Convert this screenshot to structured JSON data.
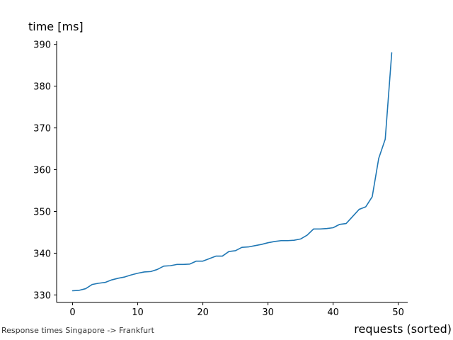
{
  "chart_data": {
    "type": "line",
    "xlabel": "requests (sorted)",
    "ylabel": "time [ms]",
    "xlim": [
      -2.45,
      51.45
    ],
    "ylim": [
      328.2,
      390.8
    ],
    "x_ticks": [
      0,
      10,
      20,
      30,
      40,
      50
    ],
    "y_ticks": [
      330,
      340,
      350,
      360,
      370,
      380,
      390
    ],
    "grid": false,
    "line_color": "#1f77b4",
    "series": [
      {
        "values": [
          331.0,
          331.1,
          331.5,
          332.5,
          332.8,
          333.0,
          333.6,
          334.0,
          334.3,
          334.8,
          335.2,
          335.5,
          335.6,
          336.1,
          336.9,
          337.0,
          337.3,
          337.3,
          337.4,
          338.1,
          338.1,
          338.7,
          339.3,
          339.3,
          340.4,
          340.6,
          341.4,
          341.5,
          341.8,
          342.1,
          342.5,
          342.8,
          343.0,
          343.0,
          343.1,
          343.4,
          344.3,
          345.8,
          345.8,
          345.9,
          346.1,
          346.9,
          347.1,
          348.8,
          350.5,
          351.1,
          353.5,
          362.7,
          367.3,
          388.0
        ]
      }
    ]
  },
  "caption": "Response times Singapore -> Frankfurt"
}
